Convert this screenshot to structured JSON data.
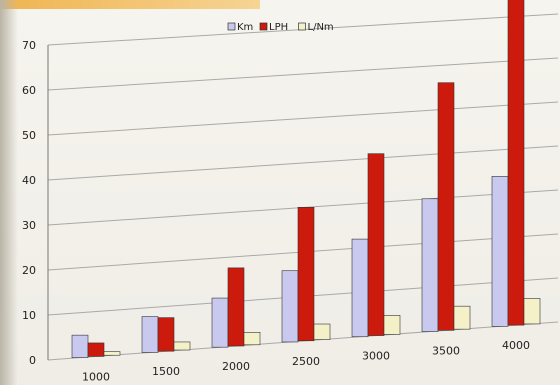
{
  "chart_data": {
    "type": "bar",
    "categories": [
      "1000",
      "1500",
      "2000",
      "2500",
      "3000",
      "3500",
      "4000"
    ],
    "series": [
      {
        "name": "Km",
        "color": "#c9c8ee",
        "values": [
          5,
          8,
          11,
          16,
          22,
          30,
          34
        ]
      },
      {
        "name": "LPH",
        "color": "#cc1a0c",
        "values": [
          3,
          7.5,
          17.5,
          30,
          41,
          56,
          74
        ]
      },
      {
        "name": "L/Nm",
        "color": "#f4f1c9",
        "values": [
          0.8,
          1.8,
          2.8,
          3.5,
          4.3,
          5.2,
          5.8
        ]
      }
    ],
    "yticks": [
      "0",
      "10",
      "20",
      "30",
      "40",
      "50",
      "60",
      "70"
    ],
    "ylim": [
      0,
      70
    ],
    "grid": true,
    "legend": "top"
  }
}
